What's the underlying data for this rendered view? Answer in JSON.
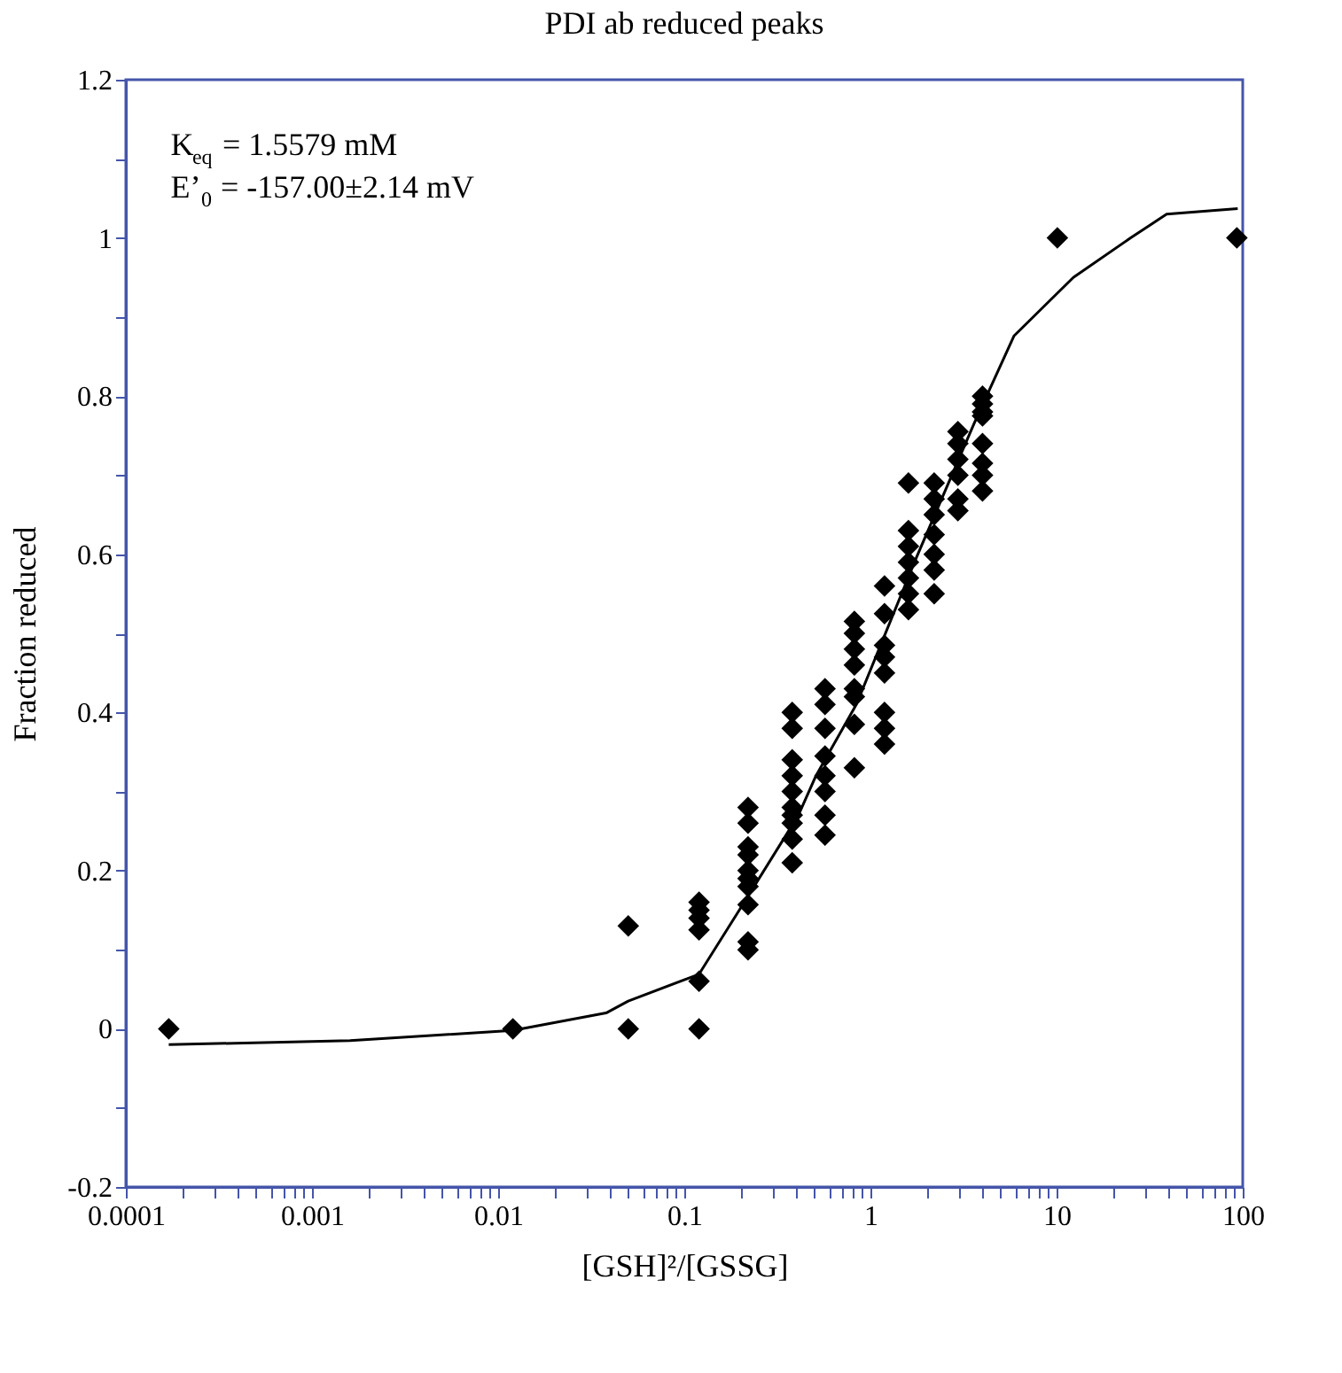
{
  "chart_data": {
    "type": "scatter",
    "title": "PDI ab reduced peaks",
    "xlabel": "[GSH]²/[GSSG]",
    "ylabel": "Fraction reduced",
    "annotations": [
      "K$_{eq}$ = 1.5579 mM",
      "E’$_{0}$ = -157.00±2.14 mV"
    ],
    "log": "x",
    "grid": false,
    "marker": "diamond",
    "xlim": [
      0.0001,
      100
    ],
    "ylim": [
      -0.2,
      1.2
    ],
    "xticks": [
      0.0001,
      0.001,
      0.01,
      0.1,
      1,
      10,
      100,
      {
        "value": 0.0002,
        "label": null
      },
      {
        "value": 0.0003,
        "label": null
      },
      {
        "value": 0.0004,
        "label": null
      },
      {
        "value": 0.0005,
        "label": null
      },
      {
        "value": 0.0006,
        "label": null
      },
      {
        "value": 0.0007,
        "label": null
      },
      {
        "value": 0.0008,
        "label": null
      },
      {
        "value": 0.0009,
        "label": null
      },
      {
        "value": 0.002,
        "label": null
      },
      {
        "value": 0.003,
        "label": null
      },
      {
        "value": 0.004,
        "label": null
      },
      {
        "value": 0.005,
        "label": null
      },
      {
        "value": 0.006,
        "label": null
      },
      {
        "value": 0.007,
        "label": null
      },
      {
        "value": 0.008,
        "label": null
      },
      {
        "value": 0.009,
        "label": null
      },
      {
        "value": 0.02,
        "label": null
      },
      {
        "value": 0.03,
        "label": null
      },
      {
        "value": 0.04,
        "label": null
      },
      {
        "value": 0.05,
        "label": null
      },
      {
        "value": 0.06,
        "label": null
      },
      {
        "value": 0.07,
        "label": null
      },
      {
        "value": 0.08,
        "label": null
      },
      {
        "value": 0.09,
        "label": null
      },
      {
        "value": 0.2,
        "label": null
      },
      {
        "value": 0.3,
        "label": null
      },
      {
        "value": 0.4,
        "label": null
      },
      {
        "value": 0.5,
        "label": null
      },
      {
        "value": 0.6,
        "label": null
      },
      {
        "value": 0.7,
        "label": null
      },
      {
        "value": 0.8,
        "label": null
      },
      {
        "value": 0.9,
        "label": null
      },
      {
        "value": 2,
        "label": null
      },
      {
        "value": 3,
        "label": null
      },
      {
        "value": 4,
        "label": null
      },
      {
        "value": 5,
        "label": null
      },
      {
        "value": 6,
        "label": null
      },
      {
        "value": 7,
        "label": null
      },
      {
        "value": 8,
        "label": null
      },
      {
        "value": 9,
        "label": null
      },
      {
        "value": 20,
        "label": null
      },
      {
        "value": 30,
        "label": null
      },
      {
        "value": 40,
        "label": null
      },
      {
        "value": 50,
        "label": null
      },
      {
        "value": 60,
        "label": null
      },
      {
        "value": 70,
        "label": null
      },
      {
        "value": 80,
        "label": null
      },
      {
        "value": 90,
        "label": null
      }
    ],
    "yticks": [
      -0.2,
      0,
      0.2,
      0.4,
      0.6,
      0.8,
      1,
      1.2,
      {
        "value": -0.1,
        "label": null
      },
      {
        "value": 0.1,
        "label": null
      },
      {
        "value": 0.3,
        "label": null
      },
      {
        "value": 0.5,
        "label": null
      },
      {
        "value": 0.7,
        "label": null
      },
      {
        "value": 0.9,
        "label": null
      },
      {
        "value": 1.1,
        "label": null
      }
    ],
    "series": [
      {
        "color": "#000000",
        "x": [
          0.00017,
          0.012,
          0.05,
          0.05,
          0.12,
          0.12,
          0.12,
          0.12,
          0.12,
          0.12,
          0.22,
          0.22,
          0.22,
          0.22,
          0.22,
          0.22,
          0.22,
          0.22,
          0.22,
          0.22,
          0.38,
          0.38,
          0.38,
          0.38,
          0.38,
          0.38,
          0.38,
          0.38,
          0.38,
          0.38,
          0.57,
          0.57,
          0.57,
          0.57,
          0.57,
          0.57,
          0.57,
          0.57,
          0.82,
          0.82,
          0.82,
          0.82,
          0.82,
          0.82,
          0.82,
          0.82,
          1.19,
          1.19,
          1.19,
          1.19,
          1.19,
          1.19,
          1.19,
          1.19,
          1.6,
          1.6,
          1.6,
          1.6,
          1.6,
          1.6,
          1.6,
          2.2,
          2.2,
          2.2,
          2.2,
          2.2,
          2.2,
          2.2,
          2.95,
          2.95,
          2.95,
          2.95,
          2.95,
          2.95,
          4.0,
          4.0,
          4.0,
          4.0,
          4.0,
          4.0,
          4.0,
          4.0,
          10.1,
          93
        ],
        "values": [
          0,
          0,
          0.13,
          0,
          0.16,
          0.15,
          0.14,
          0.125,
          0.06,
          0,
          0.28,
          0.26,
          0.23,
          0.22,
          0.2,
          0.19,
          0.18,
          0.157,
          0.11,
          0.1,
          0.4,
          0.38,
          0.34,
          0.32,
          0.3,
          0.28,
          0.27,
          0.26,
          0.24,
          0.21,
          0.43,
          0.41,
          0.38,
          0.345,
          0.32,
          0.3,
          0.27,
          0.245,
          0.515,
          0.5,
          0.48,
          0.46,
          0.43,
          0.42,
          0.385,
          0.33,
          0.56,
          0.525,
          0.485,
          0.47,
          0.45,
          0.4,
          0.38,
          0.36,
          0.69,
          0.63,
          0.61,
          0.59,
          0.57,
          0.55,
          0.53,
          0.69,
          0.67,
          0.65,
          0.625,
          0.6,
          0.58,
          0.55,
          0.755,
          0.74,
          0.72,
          0.7,
          0.67,
          0.655,
          0.8,
          0.79,
          0.78,
          0.775,
          0.74,
          0.715,
          0.7,
          0.68,
          1,
          1
        ]
      },
      {
        "type": "line",
        "color": "#000000",
        "line_style": "solid",
        "marker": "none",
        "x": [
          0.00017,
          0.0016,
          0.012,
          0.038,
          0.05,
          0.12,
          0.21,
          0.41,
          0.51,
          0.84,
          1.76,
          3.6,
          5.9,
          12.3,
          25,
          39,
          94
        ],
        "values": [
          -0.02,
          -0.015,
          -0.002,
          0.02,
          0.035,
          0.069,
          0.16,
          0.27,
          0.32,
          0.41,
          0.595,
          0.765,
          0.876,
          0.95,
          1.0,
          1.03,
          1.037
        ]
      }
    ]
  }
}
